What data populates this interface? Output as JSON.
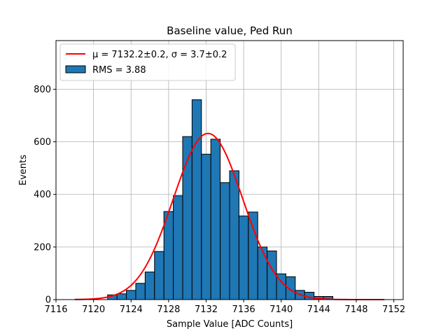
{
  "chart_data": {
    "type": "bar",
    "title": "Baseline value, Ped Run",
    "xlabel": "Sample Value [ADC Counts]",
    "ylabel": "Events",
    "xlim": [
      7116,
      7153
    ],
    "ylim": [
      0,
      985
    ],
    "x_ticks": [
      7116,
      7120,
      7124,
      7128,
      7132,
      7136,
      7140,
      7144,
      7148,
      7152
    ],
    "y_ticks": [
      0,
      200,
      400,
      600,
      800
    ],
    "grid": true,
    "legend_position": "top-left",
    "bin_width": 1,
    "bin_edges_start": 7121.5,
    "histogram": {
      "name": "RMS = 3.88",
      "color": "#1f77b4",
      "edge_color": "#000000",
      "bin_left": [
        7121.5,
        7122.5,
        7123.5,
        7124.5,
        7125.5,
        7126.5,
        7127.5,
        7128.5,
        7129.5,
        7130.5,
        7131.5,
        7132.5,
        7133.5,
        7134.5,
        7135.5,
        7136.5,
        7137.5,
        7138.5,
        7139.5,
        7140.5,
        7141.5,
        7142.5,
        7143.5,
        7144.5
      ],
      "values": [
        18,
        22,
        35,
        62,
        105,
        183,
        335,
        395,
        620,
        760,
        553,
        610,
        445,
        490,
        318,
        333,
        200,
        185,
        98,
        87,
        35,
        28,
        12,
        12
      ]
    },
    "fit": {
      "name": "μ = 7132.2±0.2, σ = 3.7±0.2",
      "color": "#ff0000",
      "mu": 7132.2,
      "sigma": 3.7,
      "amplitude": 632,
      "x_range": [
        7118,
        7151
      ]
    }
  }
}
